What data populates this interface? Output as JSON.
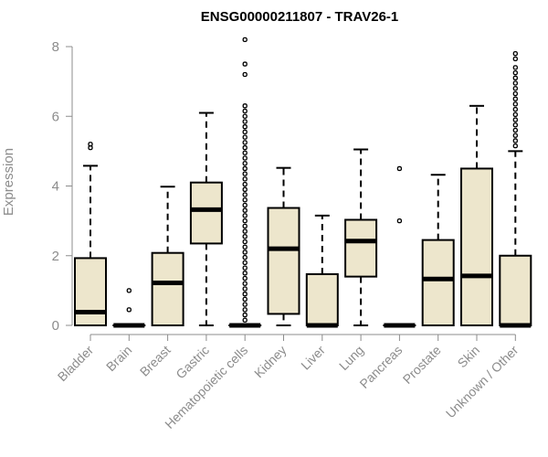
{
  "chart_data": {
    "type": "boxplot",
    "title": "ENSG00000211807 - TRAV26-1",
    "ylabel": "Expression",
    "ylim": [
      0,
      8
    ],
    "yticks": [
      0,
      2,
      4,
      6,
      8
    ],
    "box_color": "#ede6cc",
    "categories": [
      "Bladder",
      "Brain",
      "Breast",
      "Gastric",
      "Hematopoietic cells",
      "Kidney",
      "Liver",
      "Lung",
      "Pancreas",
      "Prostate",
      "Skin",
      "Unknown / Other"
    ],
    "boxes": [
      {
        "name": "Bladder",
        "whisker_low": 0,
        "q1": 0,
        "median": 0.38,
        "q3": 1.93,
        "whisker_high": 4.58,
        "outliers": [
          5.1,
          5.2
        ]
      },
      {
        "name": "Brain",
        "whisker_low": 0,
        "q1": 0,
        "median": 0,
        "q3": 0,
        "whisker_high": 0,
        "outliers": [
          0.45,
          1.0
        ]
      },
      {
        "name": "Breast",
        "whisker_low": 0,
        "q1": 0,
        "median": 1.22,
        "q3": 2.08,
        "whisker_high": 3.98,
        "outliers": []
      },
      {
        "name": "Gastric",
        "whisker_low": 0,
        "q1": 2.35,
        "median": 3.32,
        "q3": 4.1,
        "whisker_high": 6.1,
        "outliers": []
      },
      {
        "name": "Hematopoietic cells",
        "whisker_low": 0,
        "q1": 0,
        "median": 0,
        "q3": 0,
        "whisker_high": 0,
        "outliers": [
          0.15,
          0.3,
          0.45,
          0.6,
          0.75,
          0.9,
          1.05,
          1.2,
          1.35,
          1.5,
          1.65,
          1.8,
          1.95,
          2.1,
          2.25,
          2.4,
          2.55,
          2.7,
          2.85,
          3.0,
          3.15,
          3.3,
          3.45,
          3.6,
          3.75,
          3.9,
          4.05,
          4.2,
          4.35,
          4.5,
          4.65,
          4.8,
          4.95,
          5.1,
          5.25,
          5.4,
          5.55,
          5.7,
          5.85,
          6.0,
          6.15,
          6.3,
          7.2,
          7.5,
          8.2
        ]
      },
      {
        "name": "Kidney",
        "whisker_low": 0,
        "q1": 0.33,
        "median": 2.2,
        "q3": 3.37,
        "whisker_high": 4.52,
        "outliers": []
      },
      {
        "name": "Liver",
        "whisker_low": 0,
        "q1": 0,
        "median": 0,
        "q3": 1.47,
        "whisker_high": 3.15,
        "outliers": []
      },
      {
        "name": "Lung",
        "whisker_low": 0,
        "q1": 1.4,
        "median": 2.42,
        "q3": 3.03,
        "whisker_high": 5.05,
        "outliers": []
      },
      {
        "name": "Pancreas",
        "whisker_low": 0,
        "q1": 0,
        "median": 0,
        "q3": 0,
        "whisker_high": 0,
        "outliers": [
          3.0,
          4.5
        ]
      },
      {
        "name": "Prostate",
        "whisker_low": 0,
        "q1": 0,
        "median": 1.33,
        "q3": 2.45,
        "whisker_high": 4.32,
        "outliers": []
      },
      {
        "name": "Skin",
        "whisker_low": 0,
        "q1": 0,
        "median": 1.42,
        "q3": 4.5,
        "whisker_high": 6.3,
        "outliers": []
      },
      {
        "name": "Unknown / Other",
        "whisker_low": 0,
        "q1": 0,
        "median": 0,
        "q3": 2.0,
        "whisker_high": 5.0,
        "outliers": [
          5.15,
          5.3,
          5.45,
          5.6,
          5.75,
          5.9,
          6.05,
          6.2,
          6.35,
          6.5,
          6.65,
          6.8,
          6.95,
          7.1,
          7.25,
          7.4,
          7.65,
          7.8
        ]
      }
    ]
  }
}
